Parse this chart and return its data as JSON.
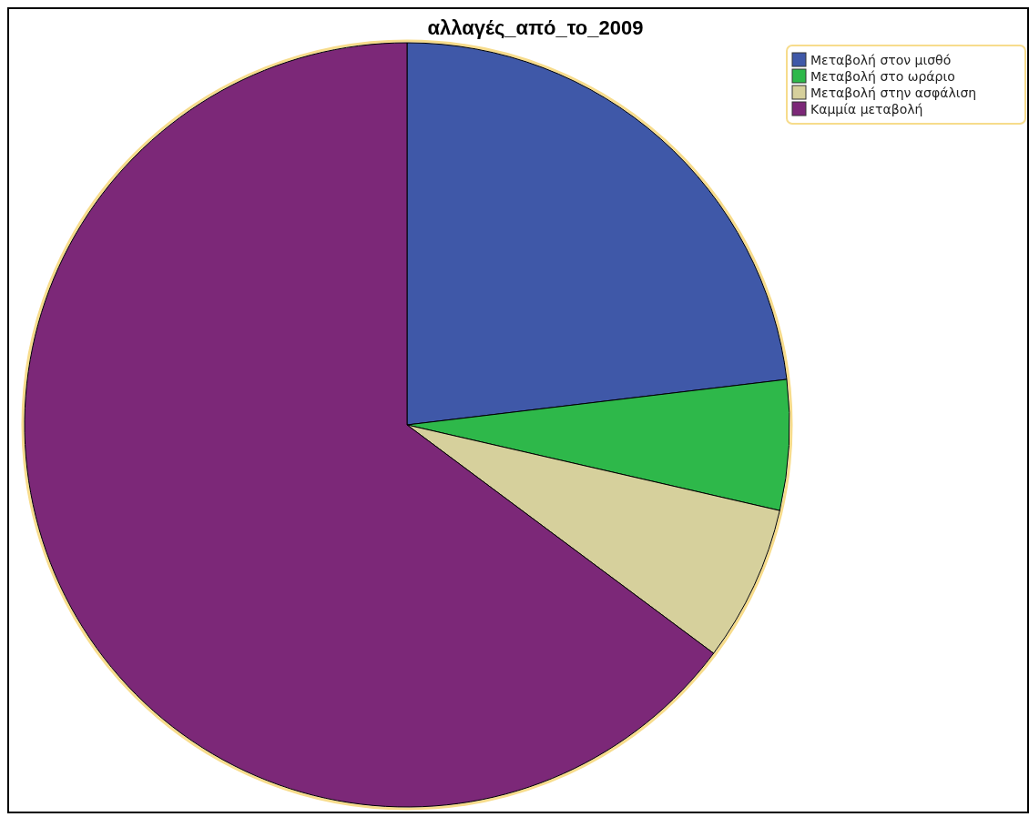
{
  "chart_data": {
    "type": "pie",
    "title": "αλλαγές_από_το_2009",
    "categories": [
      "Μεταβολή στον μισθό",
      "Μεταβολή στο ωράριο",
      "Μεταβολή στην ασφάλιση",
      "Καμμία μεταβολή"
    ],
    "values": [
      23.1,
      5.5,
      6.6,
      64.8
    ],
    "colors": [
      "#3f58a8",
      "#2eb84a",
      "#d6d09c",
      "#7c2878"
    ],
    "legend": "top right"
  }
}
